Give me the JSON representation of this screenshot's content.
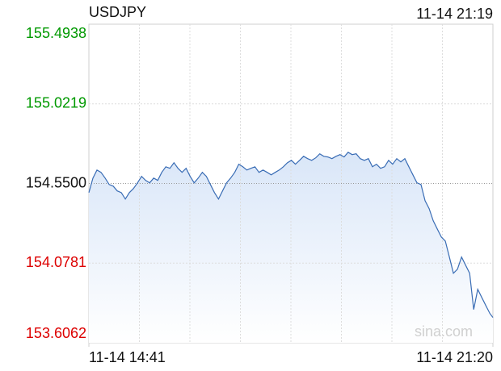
{
  "chart_data": {
    "type": "line",
    "title": "USDJPY",
    "timestamp": "11-14 21:19",
    "watermark": "sina.com",
    "x": [
      0,
      4,
      8,
      12,
      16,
      20,
      24,
      28,
      32,
      36,
      40,
      44,
      48,
      52,
      56,
      60,
      64,
      68,
      72,
      76,
      80,
      84,
      88,
      92,
      96,
      100,
      104,
      108,
      112,
      116,
      120,
      124,
      128,
      132,
      136,
      140,
      144,
      148,
      152,
      156,
      160,
      164,
      168,
      172,
      176,
      180,
      184,
      188,
      192,
      196,
      200,
      204,
      208,
      212,
      216,
      220,
      224,
      228,
      232,
      236,
      240,
      244,
      248,
      252,
      256,
      260,
      264,
      268,
      272,
      276,
      280,
      284,
      288,
      292,
      296,
      300,
      304,
      308,
      312,
      316,
      320,
      324,
      328,
      332,
      336,
      340,
      344,
      348,
      352,
      356,
      360,
      364,
      368,
      372,
      376,
      380,
      384,
      388,
      392,
      396,
      399
    ],
    "series": [
      {
        "name": "USDJPY",
        "color": "#3a6db5",
        "values": [
          154.496,
          154.582,
          154.63,
          154.616,
          154.582,
          154.544,
          154.534,
          154.506,
          154.496,
          154.458,
          154.496,
          154.52,
          154.554,
          154.592,
          154.568,
          154.554,
          154.582,
          154.568,
          154.616,
          154.649,
          154.64,
          154.673,
          154.64,
          154.616,
          154.64,
          154.592,
          154.554,
          154.582,
          154.616,
          154.592,
          154.544,
          154.496,
          154.458,
          154.506,
          154.554,
          154.582,
          154.616,
          154.664,
          154.649,
          154.63,
          154.64,
          154.649,
          154.616,
          154.63,
          154.616,
          154.601,
          154.616,
          154.63,
          154.649,
          154.673,
          154.687,
          154.664,
          154.687,
          154.711,
          154.697,
          154.687,
          154.702,
          154.726,
          154.711,
          154.707,
          154.697,
          154.711,
          154.721,
          154.707,
          154.735,
          154.721,
          154.726,
          154.697,
          154.687,
          154.697,
          154.649,
          154.664,
          154.64,
          154.649,
          154.687,
          154.664,
          154.697,
          154.678,
          154.697,
          154.649,
          154.601,
          154.554,
          154.544,
          154.448,
          154.401,
          154.329,
          154.281,
          154.233,
          154.209,
          154.114,
          154.018,
          154.042,
          154.114,
          154.066,
          154.018,
          153.803,
          153.923,
          153.875,
          153.827,
          153.78,
          153.756
        ]
      }
    ],
    "xlim": [
      0,
      399
    ],
    "xticks": [
      {
        "value": 0,
        "label": "11-14 14:41"
      },
      {
        "value": 399,
        "label": "11-14 21:20"
      }
    ],
    "ylim": [
      153.6062,
      155.4938
    ],
    "yticks": [
      153.6062,
      154.0781,
      {
        "value": 154.55,
        "label": "154.5500"
      },
      155.0219,
      155.4938
    ],
    "up_color": "#009900",
    "down_color": "#dd0000",
    "grid": true
  }
}
